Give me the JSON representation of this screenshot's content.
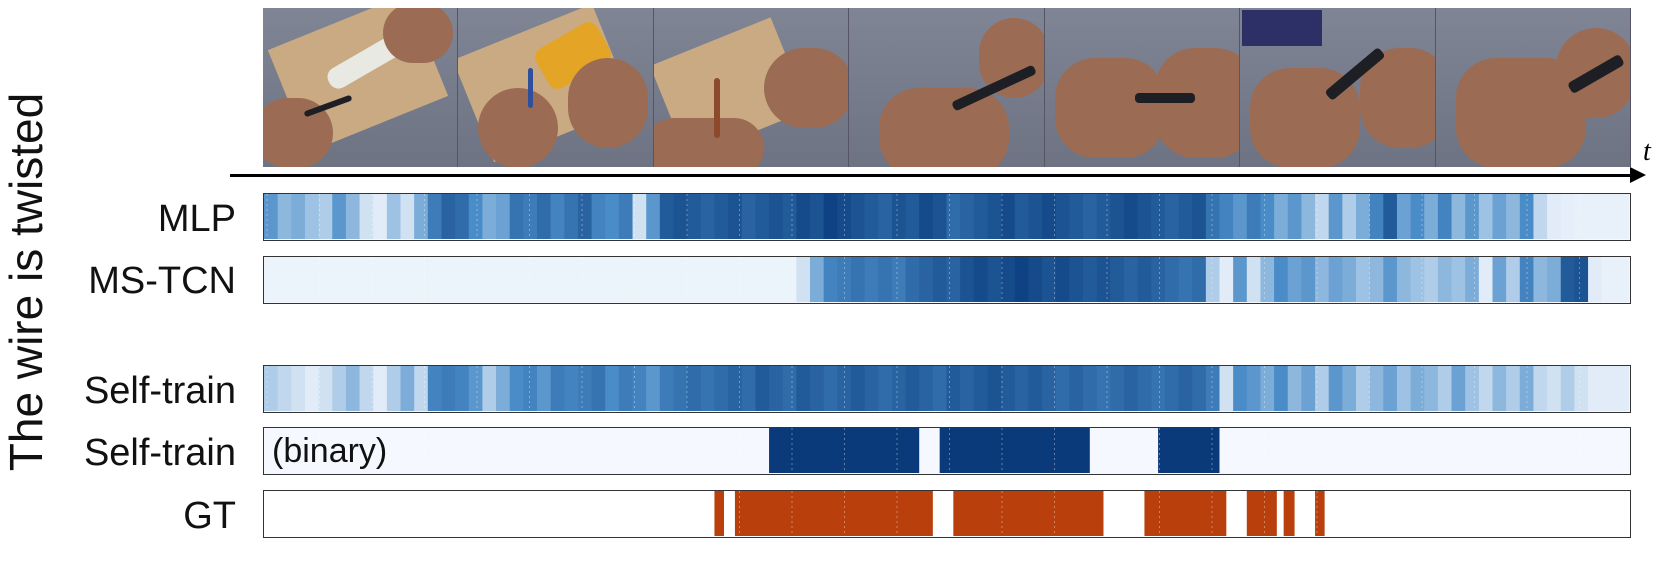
{
  "figure": {
    "side_label": "The wire is twisted",
    "time_axis_label": "t"
  },
  "frames": [
    {
      "name": "frame-1"
    },
    {
      "name": "frame-2"
    },
    {
      "name": "frame-3"
    },
    {
      "name": "frame-4"
    },
    {
      "name": "frame-5"
    },
    {
      "name": "frame-6"
    },
    {
      "name": "frame-7"
    }
  ],
  "rows": [
    {
      "key": "mlp",
      "label": "MLP",
      "note": ""
    },
    {
      "key": "mstcn",
      "label": "MS-TCN",
      "note": ""
    },
    {
      "key": "selftrain",
      "label": "Self-train",
      "note": ""
    },
    {
      "key": "selftrain_bin",
      "label": "Self-train",
      "note": "(binary)"
    },
    {
      "key": "gt",
      "label": "GT",
      "note": ""
    }
  ],
  "colors": {
    "low": "#f2f7fd",
    "high": "#083a7c",
    "binary_on": "#0b3a7a",
    "gt_on": "#b9400c"
  },
  "chart_data": {
    "type": "heatmap",
    "time_bins": 100,
    "mlp": [
      0.45,
      0.3,
      0.35,
      0.25,
      0.2,
      0.45,
      0.3,
      0.1,
      0.05,
      0.25,
      0.1,
      0.35,
      0.6,
      0.75,
      0.7,
      0.5,
      0.35,
      0.4,
      0.65,
      0.6,
      0.7,
      0.55,
      0.65,
      0.75,
      0.55,
      0.5,
      0.6,
      0.1,
      0.45,
      0.8,
      0.85,
      0.8,
      0.75,
      0.8,
      0.85,
      0.75,
      0.8,
      0.85,
      0.8,
      0.9,
      0.85,
      0.95,
      0.9,
      0.85,
      0.8,
      0.75,
      0.85,
      0.8,
      0.9,
      0.85,
      0.7,
      0.75,
      0.8,
      0.85,
      0.9,
      0.8,
      0.85,
      0.9,
      0.85,
      0.8,
      0.75,
      0.8,
      0.85,
      0.9,
      0.85,
      0.8,
      0.75,
      0.8,
      0.85,
      0.65,
      0.55,
      0.45,
      0.6,
      0.5,
      0.35,
      0.45,
      0.3,
      0.15,
      0.45,
      0.2,
      0.35,
      0.55,
      0.8,
      0.4,
      0.5,
      0.35,
      0.55,
      0.3,
      0.45,
      0.25,
      0.4,
      0.3,
      0.5,
      0.15,
      0.05,
      0.04,
      0.03,
      0.03,
      0.03,
      0.03
    ],
    "mstcn": [
      0.02,
      0.02,
      0.02,
      0.02,
      0.02,
      0.02,
      0.02,
      0.02,
      0.02,
      0.02,
      0.02,
      0.02,
      0.02,
      0.02,
      0.02,
      0.02,
      0.02,
      0.02,
      0.02,
      0.02,
      0.02,
      0.02,
      0.02,
      0.02,
      0.02,
      0.02,
      0.02,
      0.02,
      0.02,
      0.02,
      0.02,
      0.02,
      0.02,
      0.02,
      0.02,
      0.02,
      0.02,
      0.02,
      0.02,
      0.1,
      0.35,
      0.55,
      0.6,
      0.65,
      0.6,
      0.65,
      0.6,
      0.7,
      0.75,
      0.8,
      0.75,
      0.85,
      0.9,
      0.85,
      0.9,
      0.95,
      0.9,
      0.85,
      0.9,
      0.85,
      0.8,
      0.85,
      0.8,
      0.75,
      0.8,
      0.75,
      0.7,
      0.65,
      0.7,
      0.2,
      0.05,
      0.45,
      0.1,
      0.3,
      0.5,
      0.4,
      0.45,
      0.3,
      0.4,
      0.35,
      0.25,
      0.3,
      0.45,
      0.3,
      0.25,
      0.2,
      0.3,
      0.25,
      0.35,
      0.05,
      0.4,
      0.2,
      0.55,
      0.3,
      0.35,
      0.8,
      0.85,
      0.05,
      0.03,
      0.03
    ],
    "selftrain": [
      0.2,
      0.15,
      0.1,
      0.05,
      0.1,
      0.2,
      0.3,
      0.15,
      0.05,
      0.2,
      0.35,
      0.15,
      0.55,
      0.6,
      0.55,
      0.45,
      0.2,
      0.35,
      0.5,
      0.55,
      0.45,
      0.6,
      0.55,
      0.6,
      0.65,
      0.5,
      0.6,
      0.55,
      0.45,
      0.6,
      0.65,
      0.7,
      0.65,
      0.7,
      0.75,
      0.7,
      0.8,
      0.75,
      0.7,
      0.8,
      0.75,
      0.7,
      0.75,
      0.8,
      0.75,
      0.7,
      0.75,
      0.8,
      0.75,
      0.7,
      0.8,
      0.75,
      0.8,
      0.85,
      0.8,
      0.75,
      0.8,
      0.75,
      0.7,
      0.75,
      0.7,
      0.65,
      0.7,
      0.75,
      0.7,
      0.65,
      0.7,
      0.75,
      0.7,
      0.6,
      0.1,
      0.5,
      0.45,
      0.35,
      0.5,
      0.3,
      0.4,
      0.2,
      0.45,
      0.35,
      0.2,
      0.3,
      0.4,
      0.25,
      0.35,
      0.3,
      0.2,
      0.4,
      0.25,
      0.15,
      0.3,
      0.2,
      0.35,
      0.15,
      0.1,
      0.2,
      0.1,
      0.05,
      0.05,
      0.05
    ],
    "selftrain_binary_segments": [
      [
        37,
        48
      ],
      [
        49.5,
        60.5
      ],
      [
        65.5,
        70
      ]
    ],
    "gt_segments": [
      [
        33,
        33.7
      ],
      [
        34.5,
        49
      ],
      [
        50.5,
        61.5
      ],
      [
        64.5,
        70.5
      ],
      [
        72,
        74.2
      ],
      [
        74.7,
        75.5
      ],
      [
        77,
        77.7
      ]
    ]
  }
}
